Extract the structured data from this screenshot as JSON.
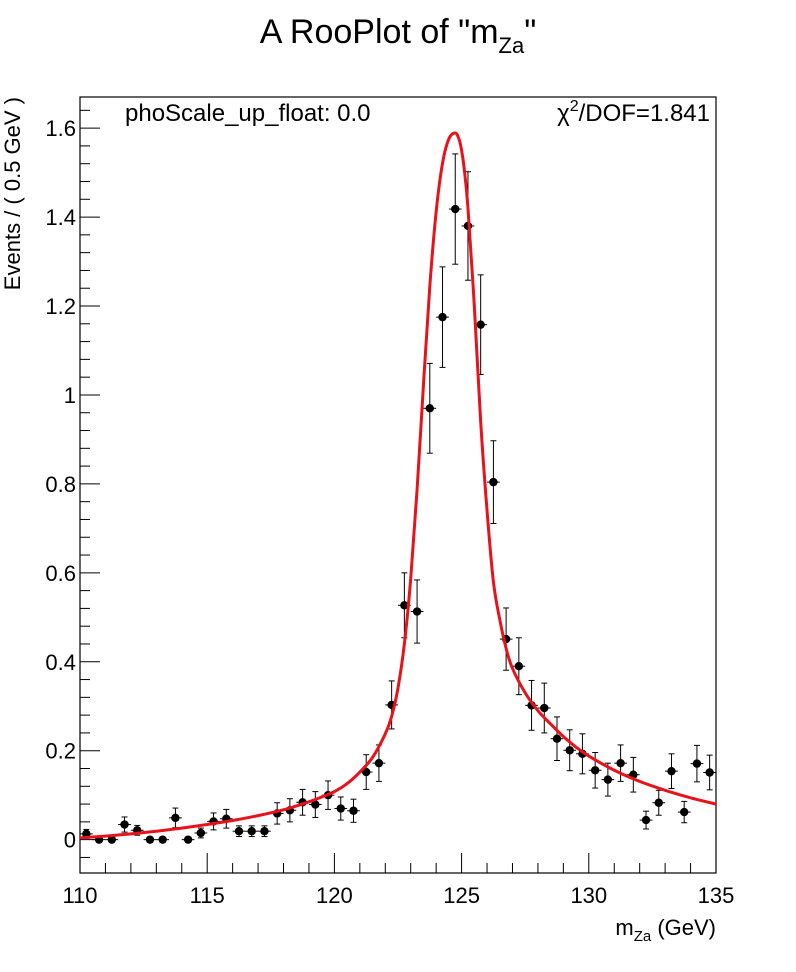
{
  "chart_data": {
    "type": "scatter",
    "title": "A RooPlot of \"m",
    "title_sub": "Za",
    "title_end": "\"",
    "xlabel": "m",
    "xlabel_sub": "Za",
    "xlabel_unit": " (GeV)",
    "ylabel": "Events / ( 0.5 GeV )",
    "annotations": {
      "param": "phoScale_up_float: 0.0",
      "chi2_prefix": "χ",
      "chi2_sup": "2",
      "chi2_rest": "/DOF=1.841"
    },
    "xlim": [
      110,
      135
    ],
    "ylim": [
      -0.075,
      1.67
    ],
    "x_ticks": [
      110,
      115,
      120,
      125,
      130,
      135
    ],
    "x_tick_labels": [
      "110",
      "115",
      "120",
      "125",
      "130",
      "135"
    ],
    "y_ticks": [
      0,
      0.2,
      0.4,
      0.6,
      0.8,
      1,
      1.2,
      1.4,
      1.6
    ],
    "y_tick_labels": [
      "0",
      "0.2",
      "0.4",
      "0.6",
      "0.8",
      "1",
      "1.2",
      "1.4",
      "1.6"
    ],
    "bin_width": 0.5,
    "grid": false,
    "series": [
      {
        "type": "points-with-errors",
        "color": "#000000",
        "x": [
          110.25,
          110.75,
          111.25,
          111.75,
          112.25,
          112.75,
          113.25,
          113.75,
          114.25,
          114.75,
          115.25,
          115.75,
          116.25,
          116.75,
          117.25,
          117.75,
          118.25,
          118.75,
          119.25,
          119.75,
          120.25,
          120.75,
          121.25,
          121.75,
          122.25,
          122.75,
          123.25,
          123.75,
          124.25,
          124.75,
          125.25,
          125.75,
          126.25,
          126.75,
          127.25,
          127.75,
          128.25,
          128.75,
          129.25,
          129.75,
          130.25,
          130.75,
          131.25,
          131.75,
          132.25,
          132.75,
          133.25,
          133.75,
          134.25,
          134.75
        ],
        "y": [
          0.013,
          0.0,
          0.0,
          0.034,
          0.021,
          0.0,
          0.0,
          0.049,
          0.0,
          0.015,
          0.041,
          0.047,
          0.019,
          0.019,
          0.019,
          0.059,
          0.066,
          0.084,
          0.079,
          0.1,
          0.07,
          0.065,
          0.152,
          0.172,
          0.303,
          0.527,
          0.513,
          0.97,
          1.175,
          1.418,
          1.38,
          1.158,
          0.804,
          0.451,
          0.39,
          0.302,
          0.296,
          0.227,
          0.201,
          0.193,
          0.156,
          0.135,
          0.172,
          0.146,
          0.044,
          0.083,
          0.154,
          0.062,
          0.171,
          0.151
        ],
        "yerr": [
          0.01,
          0.0,
          0.0,
          0.017,
          0.011,
          0.0,
          0.0,
          0.022,
          0.0,
          0.011,
          0.019,
          0.021,
          0.012,
          0.012,
          0.012,
          0.024,
          0.026,
          0.029,
          0.029,
          0.032,
          0.026,
          0.026,
          0.039,
          0.041,
          0.054,
          0.073,
          0.071,
          0.101,
          0.113,
          0.124,
          0.122,
          0.112,
          0.093,
          0.07,
          0.064,
          0.056,
          0.056,
          0.049,
          0.046,
          0.045,
          0.04,
          0.037,
          0.041,
          0.039,
          0.02,
          0.028,
          0.039,
          0.024,
          0.041,
          0.039
        ]
      },
      {
        "type": "line",
        "color": "#e8121a",
        "x": [
          110.0,
          111.0,
          112.0,
          113.0,
          114.0,
          115.0,
          116.0,
          117.0,
          118.0,
          119.0,
          119.5,
          120.0,
          120.5,
          121.0,
          121.5,
          122.0,
          122.25,
          122.5,
          122.75,
          123.0,
          123.25,
          123.5,
          123.75,
          124.0,
          124.25,
          124.5,
          124.75,
          124.9,
          125.0,
          125.1,
          125.25,
          125.5,
          125.75,
          126.0,
          126.25,
          126.5,
          126.75,
          127.0,
          127.5,
          128.0,
          128.5,
          129.0,
          129.5,
          130.0,
          131.0,
          132.0,
          133.0,
          134.0,
          135.0
        ],
        "y": [
          0.004,
          0.008,
          0.013,
          0.019,
          0.026,
          0.034,
          0.043,
          0.054,
          0.067,
          0.085,
          0.096,
          0.108,
          0.126,
          0.152,
          0.185,
          0.238,
          0.277,
          0.341,
          0.44,
          0.587,
          0.787,
          1.022,
          1.244,
          1.412,
          1.521,
          1.576,
          1.589,
          1.575,
          1.55,
          1.51,
          1.42,
          1.2,
          0.94,
          0.74,
          0.58,
          0.495,
          0.43,
          0.385,
          0.33,
          0.29,
          0.26,
          0.232,
          0.208,
          0.188,
          0.156,
          0.131,
          0.111,
          0.094,
          0.08
        ]
      }
    ]
  }
}
